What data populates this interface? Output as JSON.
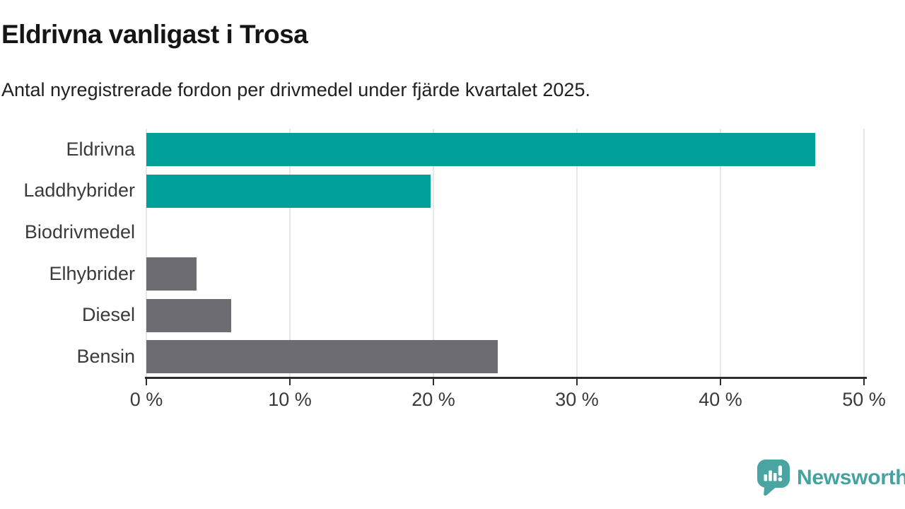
{
  "chart_data": {
    "type": "bar",
    "orientation": "horizontal",
    "title": "Eldrivna vanligast i Trosa",
    "subtitle": "Antal nyregistrerade fordon per drivmedel under fjärde kvartalet 2025.",
    "categories": [
      "Eldrivna",
      "Laddhybrider",
      "Biodrivmedel",
      "Elhybrider",
      "Diesel",
      "Bensin"
    ],
    "values": [
      46.6,
      19.8,
      0,
      3.5,
      5.9,
      24.5
    ],
    "unit": "%",
    "bar_colors": [
      "#00a09a",
      "#00a09a",
      "#00a09a",
      "#6c6c72",
      "#6c6c72",
      "#6c6c72"
    ],
    "highlight_color": "#00a09a",
    "default_color": "#6c6c72",
    "xlabel": "",
    "ylabel": "",
    "xlim": [
      0,
      50
    ],
    "x_ticks": [
      0,
      10,
      20,
      30,
      40,
      50
    ],
    "x_tick_labels": [
      "0 %",
      "10 %",
      "20 %",
      "30 %",
      "40 %",
      "50 %"
    ],
    "grid": true,
    "gridline_color": "#e7e7e7",
    "axis_color": "#2d2d2d",
    "legend": "none"
  },
  "branding": {
    "name": "Newsworthy",
    "color": "#44a3a0",
    "icon": "newsworthy-speech-bubble-bar-chart-icon"
  }
}
